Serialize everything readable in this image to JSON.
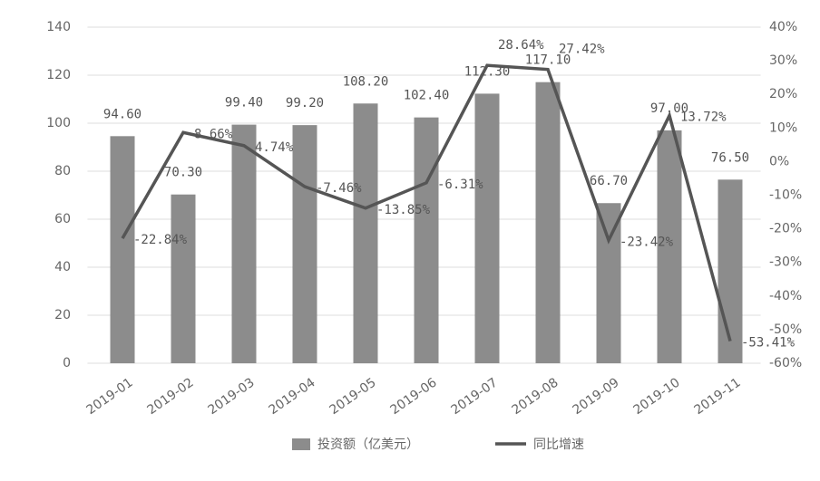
{
  "chart_data": {
    "type": "bar",
    "categories": [
      "2019-01",
      "2019-02",
      "2019-03",
      "2019-04",
      "2019-05",
      "2019-06",
      "2019-07",
      "2019-08",
      "2019-09",
      "2019-10",
      "2019-11"
    ],
    "series": [
      {
        "name": "投资额（亿美元）",
        "type": "bar",
        "color": "#8c8c8c",
        "values": [
          94.6,
          70.3,
          99.4,
          99.2,
          108.2,
          102.4,
          112.3,
          117.1,
          66.7,
          97.0,
          76.5
        ],
        "value_labels": [
          "94.60",
          "70.30",
          "99.40",
          "99.20",
          "108.20",
          "102.40",
          "112.30",
          "117.10",
          "66.70",
          "97.00",
          "76.50"
        ]
      },
      {
        "name": "同比增速",
        "type": "line",
        "axis": "y2",
        "color": "#555555",
        "values": [
          -22.84,
          8.66,
          4.74,
          -7.46,
          -13.85,
          -6.31,
          28.64,
          27.42,
          -23.42,
          13.72,
          -53.41
        ],
        "value_labels": [
          "-22.84%",
          "8.66%",
          "4.74%",
          "-7.46%",
          "-13.85%",
          "-6.31%",
          "28.64%",
          "27.42%",
          "-23.42%",
          "13.72%",
          "-53.41%"
        ]
      }
    ],
    "ylim": [
      0,
      140
    ],
    "yticks": [
      0,
      20,
      40,
      60,
      80,
      100,
      120,
      140
    ],
    "y2lim": [
      -60,
      40
    ],
    "y2ticks": [
      {
        "value": -60,
        "label": "-60%"
      },
      {
        "value": -50,
        "label": "-50%"
      },
      {
        "value": -40,
        "label": "-40%"
      },
      {
        "value": -30,
        "label": "-30%"
      },
      {
        "value": -20,
        "label": "-20%"
      },
      {
        "value": -10,
        "label": "-10%"
      },
      {
        "value": 0,
        "label": "0%"
      },
      {
        "value": 10,
        "label": "10%"
      },
      {
        "value": 20,
        "label": "20%"
      },
      {
        "value": 30,
        "label": "30%"
      },
      {
        "value": 40,
        "label": "40%"
      }
    ],
    "grid": true,
    "legend": "bottom"
  }
}
